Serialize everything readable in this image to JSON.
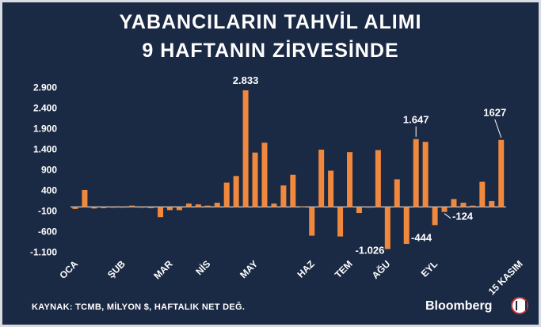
{
  "title": {
    "line1": "YABANCILARIN TAHVİL ALIMI",
    "line2": "9 HAFTANIN ZİRVESİNDE"
  },
  "source": "KAYNAK: TCMB, MİLYON $, HAFTALIK NET DEĞ.",
  "brand": "Bloomberg",
  "colors": {
    "background": "#1b2a44",
    "bar": "#f0883e",
    "text": "#ffffff"
  },
  "chart_data": {
    "type": "bar",
    "ylim": [
      -1150,
      2950
    ],
    "yticks": [
      2900,
      2400,
      1900,
      1400,
      900,
      400,
      -100,
      -600,
      -1100
    ],
    "ytick_labels": [
      "2.900",
      "2.400",
      "1.900",
      "1.400",
      "900",
      "400",
      "-100",
      "-600",
      "-1.100"
    ],
    "grid": false,
    "month_labels": [
      "OCA",
      "ŞUB",
      "MAR",
      "NİS",
      "MAY",
      "HAZ",
      "TEM",
      "AĞU",
      "EYL",
      "15 KASIM"
    ],
    "month_label_weeks": [
      1,
      6,
      11,
      15,
      20,
      26,
      30,
      34,
      39,
      48
    ],
    "values": [
      -50,
      410,
      -40,
      -30,
      -20,
      0,
      30,
      -20,
      -30,
      -250,
      -80,
      -80,
      80,
      60,
      30,
      100,
      590,
      750,
      2833,
      1320,
      1560,
      80,
      520,
      780,
      10,
      -700,
      1390,
      880,
      -720,
      1330,
      -150,
      0,
      1380,
      -1026,
      670,
      -900,
      1647,
      1580,
      -444,
      -124,
      190,
      100,
      30,
      610,
      140,
      1627
    ],
    "annotations": [
      {
        "text": "2.833",
        "week": 19,
        "value": 2833
      },
      {
        "text": "-1.026",
        "week": 34,
        "value": -1026
      },
      {
        "text": "1.647",
        "week": 37,
        "value": 1647
      },
      {
        "text": "-444",
        "week": 39,
        "value": -444
      },
      {
        "text": "-124",
        "week": 40,
        "value": -124
      },
      {
        "text": "1627",
        "week": 46,
        "value": 1627
      }
    ]
  }
}
